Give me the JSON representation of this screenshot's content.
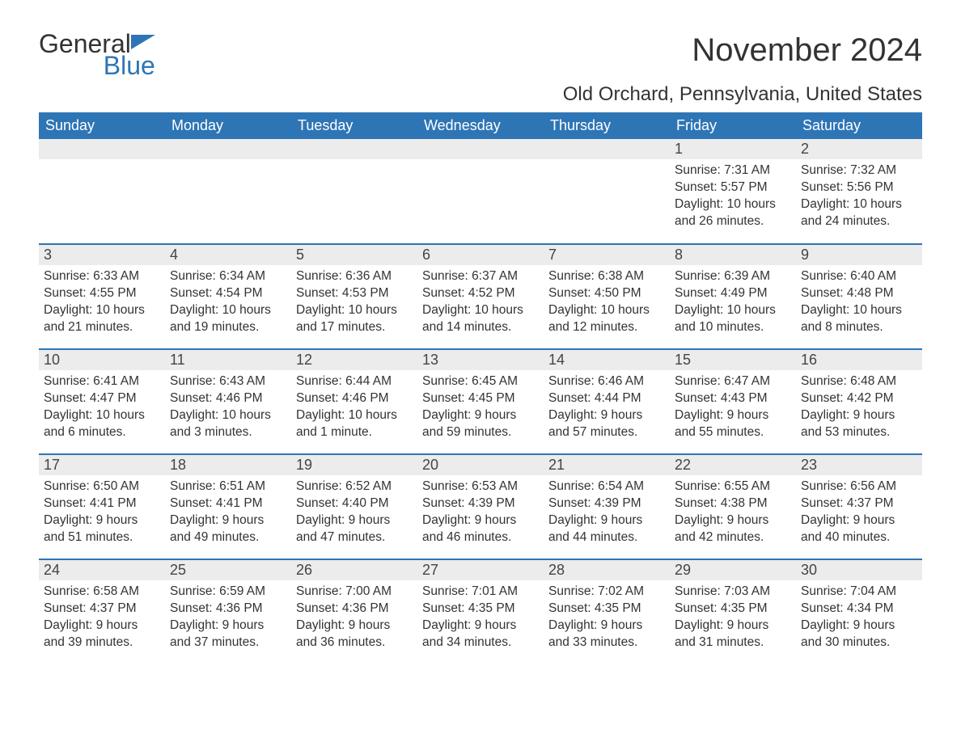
{
  "brand": {
    "part1": "General",
    "part2": "Blue"
  },
  "title": "November 2024",
  "location": "Old Orchard, Pennsylvania, United States",
  "colors": {
    "header_bg": "#2e75b6",
    "header_text": "#ffffff",
    "daynum_bg": "#ececec",
    "row_border": "#2e75b6",
    "text": "#333333",
    "background": "#ffffff"
  },
  "dayNames": [
    "Sunday",
    "Monday",
    "Tuesday",
    "Wednesday",
    "Thursday",
    "Friday",
    "Saturday"
  ],
  "weeks": [
    [
      null,
      null,
      null,
      null,
      null,
      {
        "n": "1",
        "sunrise": "Sunrise: 7:31 AM",
        "sunset": "Sunset: 5:57 PM",
        "daylight": "Daylight: 10 hours and 26 minutes."
      },
      {
        "n": "2",
        "sunrise": "Sunrise: 7:32 AM",
        "sunset": "Sunset: 5:56 PM",
        "daylight": "Daylight: 10 hours and 24 minutes."
      }
    ],
    [
      {
        "n": "3",
        "sunrise": "Sunrise: 6:33 AM",
        "sunset": "Sunset: 4:55 PM",
        "daylight": "Daylight: 10 hours and 21 minutes."
      },
      {
        "n": "4",
        "sunrise": "Sunrise: 6:34 AM",
        "sunset": "Sunset: 4:54 PM",
        "daylight": "Daylight: 10 hours and 19 minutes."
      },
      {
        "n": "5",
        "sunrise": "Sunrise: 6:36 AM",
        "sunset": "Sunset: 4:53 PM",
        "daylight": "Daylight: 10 hours and 17 minutes."
      },
      {
        "n": "6",
        "sunrise": "Sunrise: 6:37 AM",
        "sunset": "Sunset: 4:52 PM",
        "daylight": "Daylight: 10 hours and 14 minutes."
      },
      {
        "n": "7",
        "sunrise": "Sunrise: 6:38 AM",
        "sunset": "Sunset: 4:50 PM",
        "daylight": "Daylight: 10 hours and 12 minutes."
      },
      {
        "n": "8",
        "sunrise": "Sunrise: 6:39 AM",
        "sunset": "Sunset: 4:49 PM",
        "daylight": "Daylight: 10 hours and 10 minutes."
      },
      {
        "n": "9",
        "sunrise": "Sunrise: 6:40 AM",
        "sunset": "Sunset: 4:48 PM",
        "daylight": "Daylight: 10 hours and 8 minutes."
      }
    ],
    [
      {
        "n": "10",
        "sunrise": "Sunrise: 6:41 AM",
        "sunset": "Sunset: 4:47 PM",
        "daylight": "Daylight: 10 hours and 6 minutes."
      },
      {
        "n": "11",
        "sunrise": "Sunrise: 6:43 AM",
        "sunset": "Sunset: 4:46 PM",
        "daylight": "Daylight: 10 hours and 3 minutes."
      },
      {
        "n": "12",
        "sunrise": "Sunrise: 6:44 AM",
        "sunset": "Sunset: 4:46 PM",
        "daylight": "Daylight: 10 hours and 1 minute."
      },
      {
        "n": "13",
        "sunrise": "Sunrise: 6:45 AM",
        "sunset": "Sunset: 4:45 PM",
        "daylight": "Daylight: 9 hours and 59 minutes."
      },
      {
        "n": "14",
        "sunrise": "Sunrise: 6:46 AM",
        "sunset": "Sunset: 4:44 PM",
        "daylight": "Daylight: 9 hours and 57 minutes."
      },
      {
        "n": "15",
        "sunrise": "Sunrise: 6:47 AM",
        "sunset": "Sunset: 4:43 PM",
        "daylight": "Daylight: 9 hours and 55 minutes."
      },
      {
        "n": "16",
        "sunrise": "Sunrise: 6:48 AM",
        "sunset": "Sunset: 4:42 PM",
        "daylight": "Daylight: 9 hours and 53 minutes."
      }
    ],
    [
      {
        "n": "17",
        "sunrise": "Sunrise: 6:50 AM",
        "sunset": "Sunset: 4:41 PM",
        "daylight": "Daylight: 9 hours and 51 minutes."
      },
      {
        "n": "18",
        "sunrise": "Sunrise: 6:51 AM",
        "sunset": "Sunset: 4:41 PM",
        "daylight": "Daylight: 9 hours and 49 minutes."
      },
      {
        "n": "19",
        "sunrise": "Sunrise: 6:52 AM",
        "sunset": "Sunset: 4:40 PM",
        "daylight": "Daylight: 9 hours and 47 minutes."
      },
      {
        "n": "20",
        "sunrise": "Sunrise: 6:53 AM",
        "sunset": "Sunset: 4:39 PM",
        "daylight": "Daylight: 9 hours and 46 minutes."
      },
      {
        "n": "21",
        "sunrise": "Sunrise: 6:54 AM",
        "sunset": "Sunset: 4:39 PM",
        "daylight": "Daylight: 9 hours and 44 minutes."
      },
      {
        "n": "22",
        "sunrise": "Sunrise: 6:55 AM",
        "sunset": "Sunset: 4:38 PM",
        "daylight": "Daylight: 9 hours and 42 minutes."
      },
      {
        "n": "23",
        "sunrise": "Sunrise: 6:56 AM",
        "sunset": "Sunset: 4:37 PM",
        "daylight": "Daylight: 9 hours and 40 minutes."
      }
    ],
    [
      {
        "n": "24",
        "sunrise": "Sunrise: 6:58 AM",
        "sunset": "Sunset: 4:37 PM",
        "daylight": "Daylight: 9 hours and 39 minutes."
      },
      {
        "n": "25",
        "sunrise": "Sunrise: 6:59 AM",
        "sunset": "Sunset: 4:36 PM",
        "daylight": "Daylight: 9 hours and 37 minutes."
      },
      {
        "n": "26",
        "sunrise": "Sunrise: 7:00 AM",
        "sunset": "Sunset: 4:36 PM",
        "daylight": "Daylight: 9 hours and 36 minutes."
      },
      {
        "n": "27",
        "sunrise": "Sunrise: 7:01 AM",
        "sunset": "Sunset: 4:35 PM",
        "daylight": "Daylight: 9 hours and 34 minutes."
      },
      {
        "n": "28",
        "sunrise": "Sunrise: 7:02 AM",
        "sunset": "Sunset: 4:35 PM",
        "daylight": "Daylight: 9 hours and 33 minutes."
      },
      {
        "n": "29",
        "sunrise": "Sunrise: 7:03 AM",
        "sunset": "Sunset: 4:35 PM",
        "daylight": "Daylight: 9 hours and 31 minutes."
      },
      {
        "n": "30",
        "sunrise": "Sunrise: 7:04 AM",
        "sunset": "Sunset: 4:34 PM",
        "daylight": "Daylight: 9 hours and 30 minutes."
      }
    ]
  ]
}
